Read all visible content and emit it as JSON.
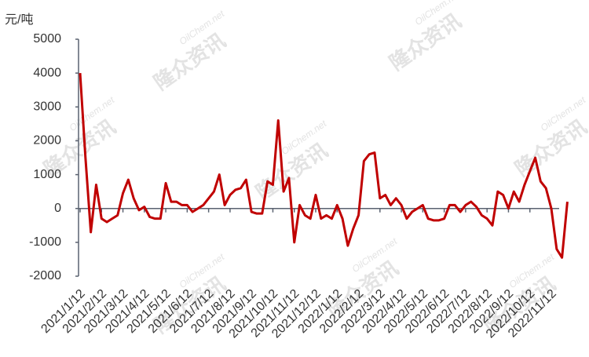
{
  "chart_data": {
    "type": "line",
    "y_label": "元/吨",
    "watermarks": [
      "隆众资讯",
      "OilChem.net"
    ],
    "categories": [
      "2021/1/12",
      null,
      null,
      null,
      "2021/2/12",
      null,
      null,
      null,
      "2021/3/12",
      null,
      null,
      null,
      "2021/4/12",
      null,
      null,
      null,
      "2021/5/12",
      null,
      null,
      null,
      "2021/6/12",
      null,
      null,
      null,
      "2021/7/12",
      null,
      null,
      null,
      "2021/8/12",
      null,
      null,
      null,
      "2021/9/12",
      null,
      null,
      null,
      "2021/10/12",
      null,
      null,
      null,
      "2021/11/12",
      null,
      null,
      null,
      "2021/12/12",
      null,
      null,
      null,
      "2022/1/12",
      null,
      null,
      null,
      "2022/2/12",
      null,
      null,
      null,
      "2022/3/12",
      null,
      null,
      null,
      "2022/4/12",
      null,
      null,
      null,
      "2022/5/12",
      null,
      null,
      null,
      "2022/6/12",
      null,
      null,
      null,
      "2022/7/12",
      null,
      null,
      null,
      "2022/8/12",
      null,
      null,
      null,
      "2022/9/12",
      null,
      null,
      null,
      "2022/10/12",
      null,
      null,
      null,
      "2022/11/12",
      null,
      null,
      null
    ],
    "series": [
      {
        "color": "#c00000",
        "values": [
          4000,
          1500,
          -700,
          700,
          -300,
          -400,
          -300,
          -200,
          450,
          850,
          300,
          -50,
          50,
          -250,
          -300,
          -300,
          750,
          200,
          200,
          100,
          100,
          -100,
          0,
          100,
          300,
          500,
          1000,
          100,
          400,
          550,
          600,
          850,
          -100,
          -150,
          -150,
          800,
          700,
          2600,
          500,
          900,
          -1000,
          100,
          -200,
          -300,
          400,
          -300,
          -200,
          -300,
          100,
          -300,
          -1100,
          -600,
          -200,
          1400,
          1600,
          1650,
          300,
          400,
          100,
          300,
          100,
          -300,
          -100,
          0,
          100,
          -300,
          -350,
          -350,
          -300,
          100,
          100,
          -100,
          100,
          200,
          50,
          -200,
          -300,
          -500,
          500,
          400,
          0,
          500,
          200,
          700,
          1100,
          1500,
          800,
          600,
          0,
          -1200,
          -1450,
          200
        ]
      }
    ],
    "ylim": [
      -2000,
      5000
    ],
    "yticks": [
      -2000,
      -1000,
      0,
      1000,
      2000,
      3000,
      4000,
      5000
    ]
  }
}
